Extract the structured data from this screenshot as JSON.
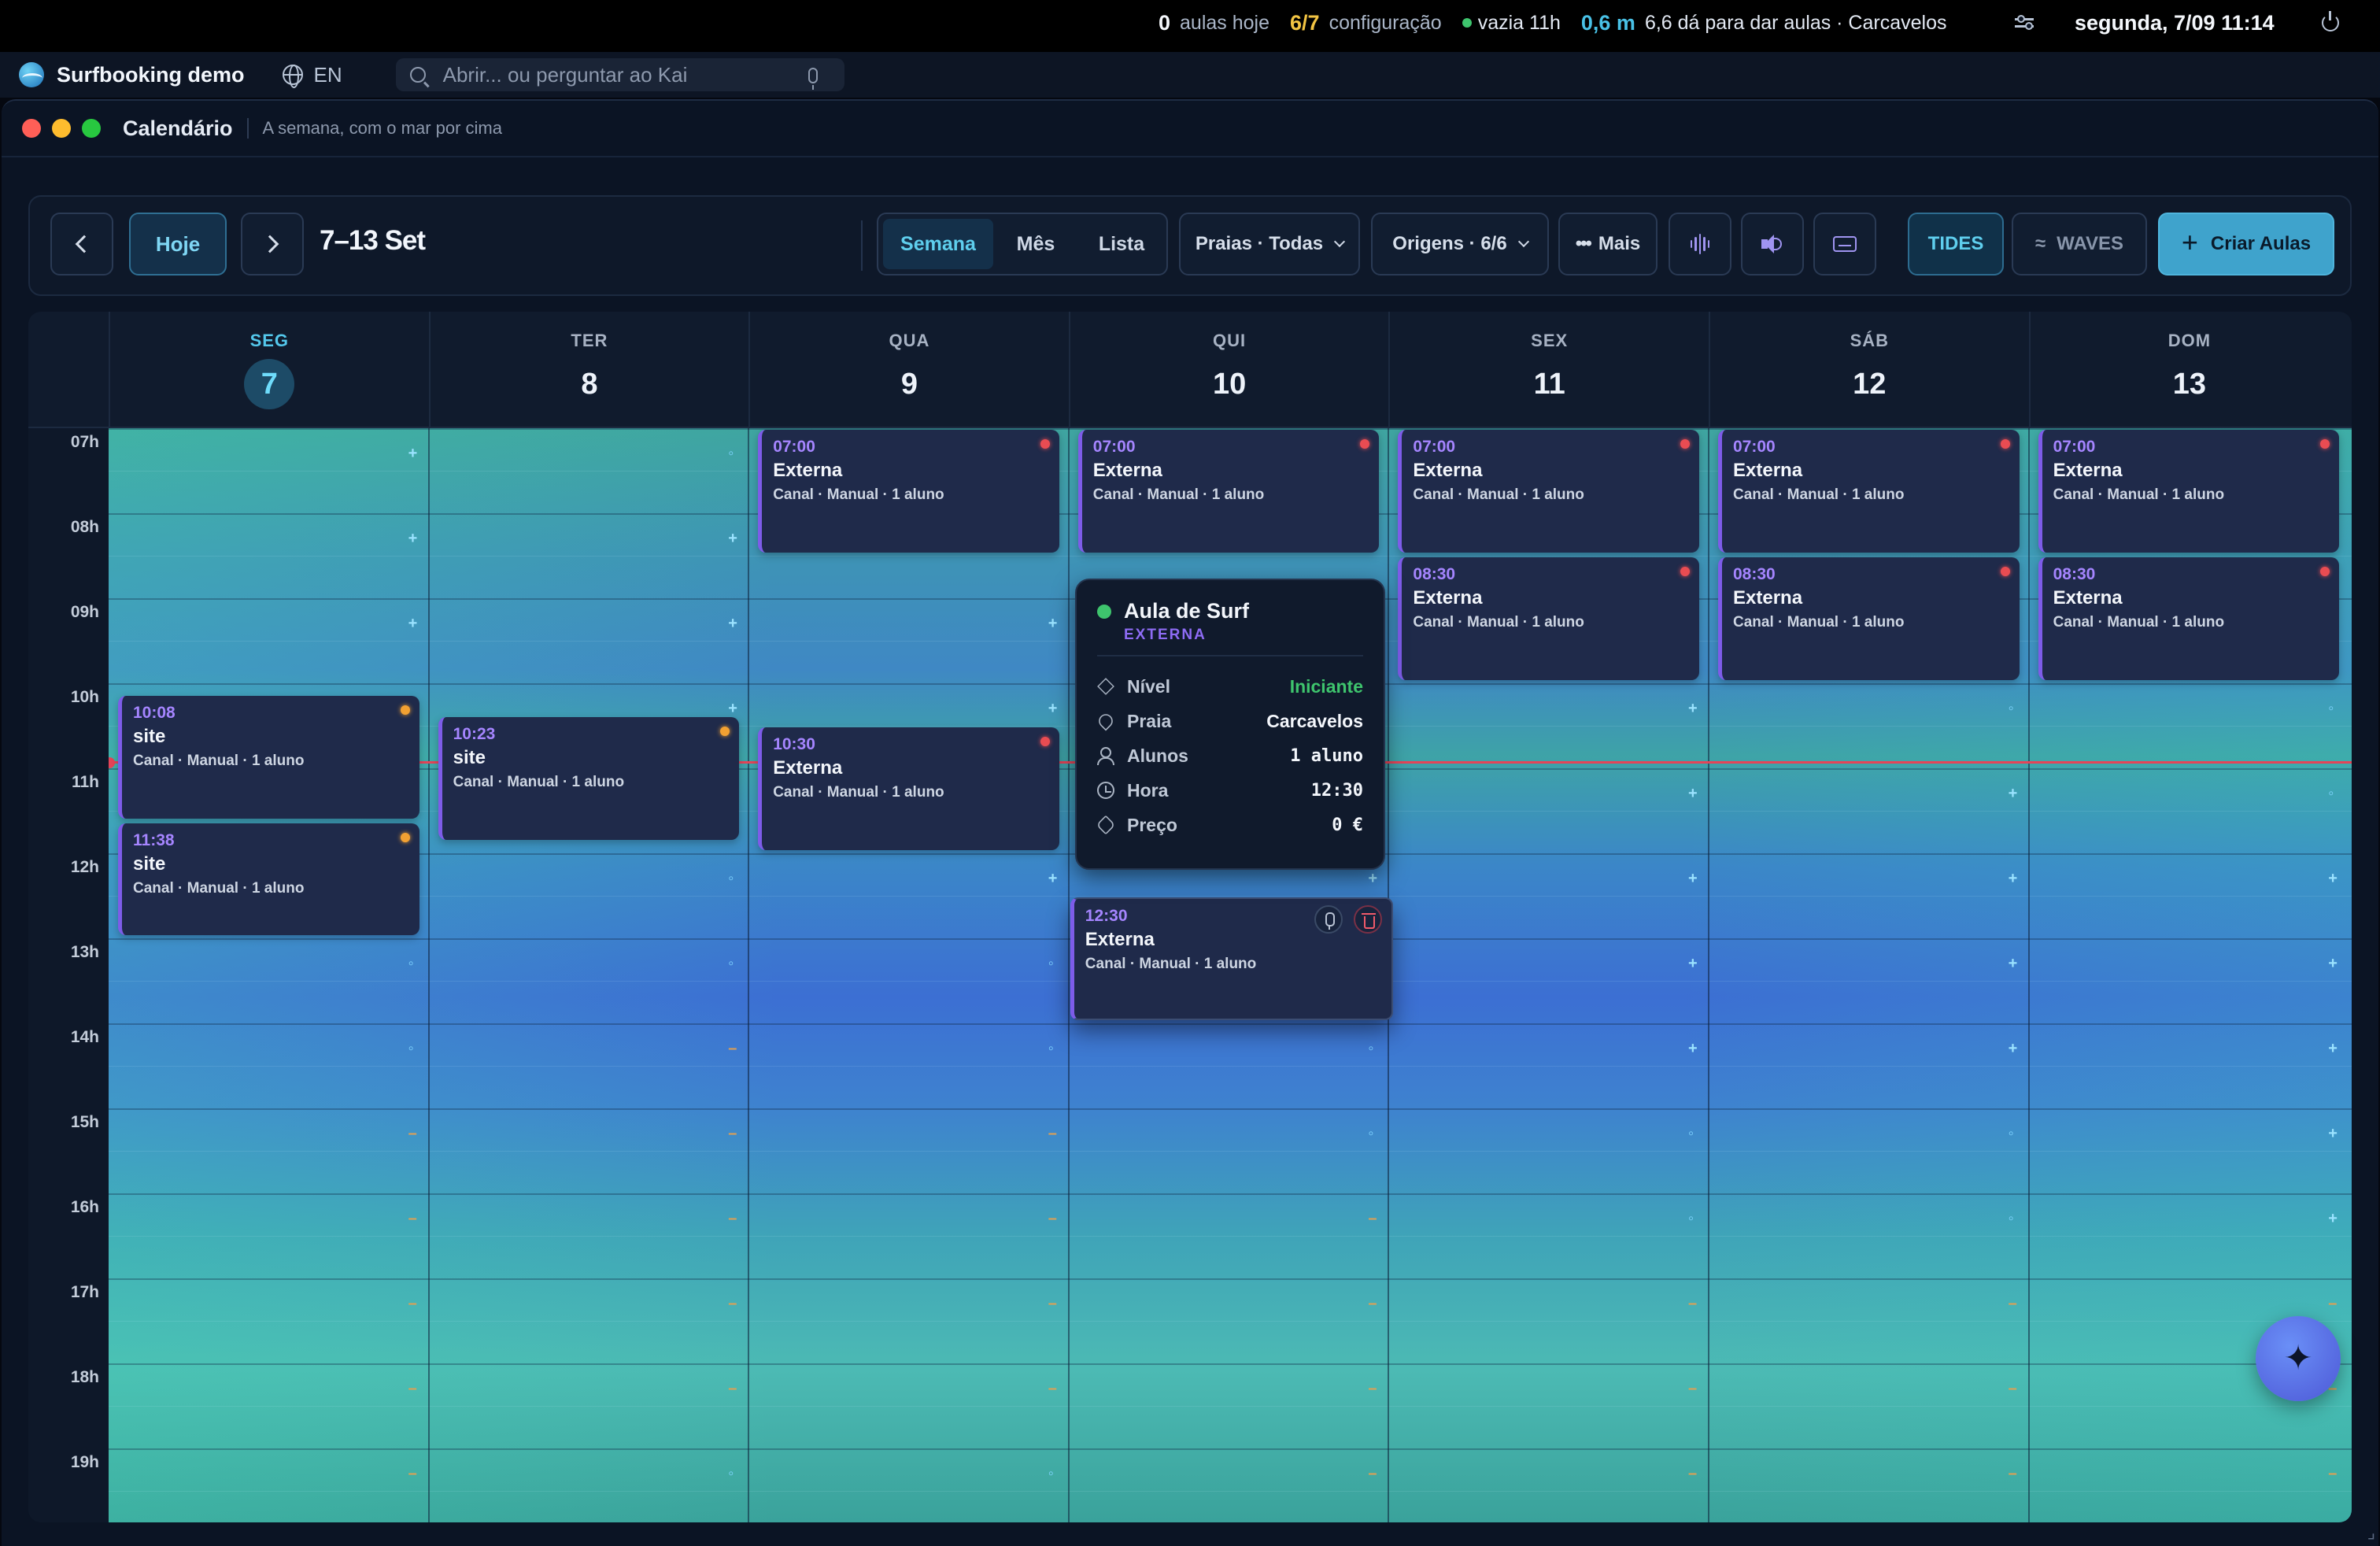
{
  "menubar": {
    "app_name": "Surfbooking demo",
    "lang": "EN",
    "search_placeholder": "Abrir... ou perguntar ao Kai",
    "stats": {
      "lessons_today_value": "0",
      "lessons_today_label": "aulas hoje",
      "config_value": "6/7",
      "config_label": "configuração",
      "empty_label": "vazia 11h",
      "wave_height": "0,6 m",
      "forecast": "6,6 dá para dar aulas · Carcavelos"
    },
    "datetime": "segunda, 7/09 11:14"
  },
  "window": {
    "title": "Calendário",
    "subtitle": "A semana, com o mar por cima"
  },
  "toolbar": {
    "today_label": "Hoje",
    "range_label": "7–13 Set",
    "views": [
      "Semana",
      "Mês",
      "Lista"
    ],
    "active_view": "Semana",
    "beaches_filter": "Praias · Todas",
    "origins_filter": "Origens · 6/6",
    "more_label": "Mais",
    "tides_label": "TIDES",
    "waves_label": "WAVES",
    "create_label": "Criar Aulas"
  },
  "days": [
    {
      "name": "SEG",
      "num": "7",
      "today": true
    },
    {
      "name": "TER",
      "num": "8"
    },
    {
      "name": "QUA",
      "num": "9"
    },
    {
      "name": "QUI",
      "num": "10"
    },
    {
      "name": "SEX",
      "num": "11"
    },
    {
      "name": "SÁB",
      "num": "12"
    },
    {
      "name": "DOM",
      "num": "13"
    }
  ],
  "hours": [
    "07h",
    "08h",
    "09h",
    "10h",
    "11h",
    "12h",
    "13h",
    "14h",
    "15h",
    "16h",
    "17h",
    "18h",
    "19h"
  ],
  "now_time": "11:14",
  "events": [
    {
      "day": 0,
      "start": "10:08",
      "end": "11:38",
      "time": "10:08",
      "name": "site",
      "meta": "Canal · Manual · 1 aluno",
      "status": "orange"
    },
    {
      "day": 0,
      "start": "11:38",
      "end": "13:00",
      "time": "11:38",
      "name": "site",
      "meta": "Canal · Manual · 1 aluno",
      "status": "orange"
    },
    {
      "day": 1,
      "start": "10:23",
      "end": "11:53",
      "time": "10:23",
      "name": "site",
      "meta": "Canal · Manual · 1 aluno",
      "status": "orange"
    },
    {
      "day": 2,
      "start": "07:00",
      "end": "08:30",
      "time": "07:00",
      "name": "Externa",
      "meta": "Canal · Manual · 1 aluno",
      "status": "red"
    },
    {
      "day": 2,
      "start": "10:30",
      "end": "12:00",
      "time": "10:30",
      "name": "Externa",
      "meta": "Canal · Manual · 1 aluno",
      "status": "red"
    },
    {
      "day": 3,
      "start": "07:00",
      "end": "08:30",
      "time": "07:00",
      "name": "Externa",
      "meta": "Canal · Manual · 1 aluno",
      "status": "red"
    },
    {
      "day": 3,
      "start": "12:30",
      "end": "14:00",
      "time": "12:30",
      "name": "Externa",
      "meta": "Canal · Manual · 1 aluno",
      "status": "",
      "selected": true
    },
    {
      "day": 4,
      "start": "07:00",
      "end": "08:30",
      "time": "07:00",
      "name": "Externa",
      "meta": "Canal · Manual · 1 aluno",
      "status": "red"
    },
    {
      "day": 4,
      "start": "08:30",
      "end": "10:00",
      "time": "08:30",
      "name": "Externa",
      "meta": "Canal · Manual · 1 aluno",
      "status": "red"
    },
    {
      "day": 5,
      "start": "07:00",
      "end": "08:30",
      "time": "07:00",
      "name": "Externa",
      "meta": "Canal · Manual · 1 aluno",
      "status": "red"
    },
    {
      "day": 5,
      "start": "08:30",
      "end": "10:00",
      "time": "08:30",
      "name": "Externa",
      "meta": "Canal · Manual · 1 aluno",
      "status": "red"
    },
    {
      "day": 6,
      "start": "07:00",
      "end": "08:30",
      "time": "07:00",
      "name": "Externa",
      "meta": "Canal · Manual · 1 aluno",
      "status": "red"
    },
    {
      "day": 6,
      "start": "08:30",
      "end": "10:00",
      "time": "08:30",
      "name": "Externa",
      "meta": "Canal · Manual · 1 aluno",
      "status": "red"
    }
  ],
  "popover": {
    "title": "Aula de Surf",
    "tag": "EXTERNA",
    "rows": [
      {
        "icon": "layers-icon",
        "label": "Nível",
        "value": "Iniciante"
      },
      {
        "icon": "map-pin-icon",
        "label": "Praia",
        "value": "Carcavelos"
      },
      {
        "icon": "users-icon",
        "label": "Alunos",
        "value": "1 aluno"
      },
      {
        "icon": "clock-icon",
        "label": "Hora",
        "value": "12:30"
      },
      {
        "icon": "tag-icon",
        "label": "Preço",
        "value": "0 €"
      }
    ]
  },
  "slot_marks": [
    [
      "+",
      "+",
      "+",
      "+",
      "+",
      "+",
      "o",
      "o",
      "-",
      "-",
      "-",
      "-",
      "-"
    ],
    [
      "o",
      "+",
      "+",
      "+",
      "+",
      "o",
      "o",
      "-",
      "-",
      "-",
      "-",
      "-",
      "o"
    ],
    [
      "+",
      "+",
      "+",
      "+",
      "+",
      "+",
      "o",
      "o",
      "-",
      "-",
      "-",
      "-",
      "o"
    ],
    [
      "+",
      "+",
      "+",
      "+",
      "+",
      "+",
      "+",
      "o",
      "o",
      "-",
      "-",
      "-",
      "-"
    ],
    [
      "+",
      "+",
      "+",
      "+",
      "+",
      "+",
      "+",
      "+",
      "o",
      "o",
      "-",
      "-",
      "-"
    ],
    [
      "+",
      "+",
      "+",
      "o",
      "+",
      "+",
      "+",
      "+",
      "o",
      "o",
      "-",
      "-",
      "-"
    ],
    [
      "+",
      "+",
      "+",
      "o",
      "o",
      "+",
      "+",
      "+",
      "+",
      "+",
      "-",
      "-",
      "-"
    ]
  ],
  "colors": {
    "accent": "#5fcfee",
    "now_line": "#e54458",
    "event_bg": "#1f2a4a",
    "event_time": "#a585ff"
  }
}
